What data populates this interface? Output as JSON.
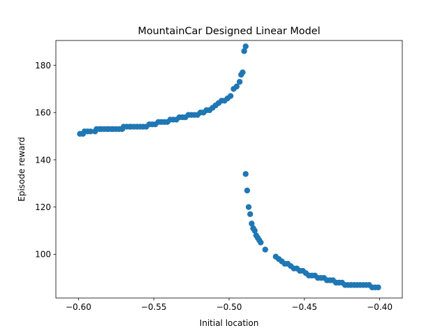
{
  "chart_data": {
    "type": "scatter",
    "title": "MountainCar Designed Linear Model",
    "xlabel": "Initial location",
    "ylabel": "Episode reward",
    "xlim": [
      -0.615,
      -0.385
    ],
    "ylim": [
      81.5,
      190.5
    ],
    "xticks": [
      -0.6,
      -0.55,
      -0.5,
      -0.45,
      -0.4
    ],
    "xtick_labels": [
      "−0.60",
      "−0.55",
      "−0.50",
      "−0.45",
      "−0.40"
    ],
    "yticks": [
      100,
      120,
      140,
      160,
      180
    ],
    "ytick_labels": [
      "100",
      "120",
      "140",
      "160",
      "180"
    ],
    "grid": false,
    "legend": "none",
    "marker_color": "#1f77b4",
    "series": [
      {
        "x": [
          -0.599,
          -0.597,
          -0.596,
          -0.594,
          -0.592,
          -0.589,
          -0.588,
          -0.586,
          -0.585,
          -0.583,
          -0.581,
          -0.58,
          -0.578,
          -0.577,
          -0.575,
          -0.573,
          -0.571,
          -0.57,
          -0.568,
          -0.566,
          -0.565,
          -0.563,
          -0.561,
          -0.559,
          -0.557,
          -0.555,
          -0.553,
          -0.551,
          -0.549,
          -0.547,
          -0.545,
          -0.543,
          -0.541,
          -0.539,
          -0.537,
          -0.535,
          -0.533,
          -0.531,
          -0.529,
          -0.527,
          -0.525,
          -0.523,
          -0.521,
          -0.519,
          -0.517,
          -0.515,
          -0.513,
          -0.511,
          -0.509,
          -0.507,
          -0.505,
          -0.503,
          -0.501,
          -0.499,
          -0.497,
          -0.495,
          -0.493,
          -0.492,
          -0.491,
          -0.49,
          -0.489,
          -0.489,
          -0.488,
          -0.487,
          -0.486,
          -0.485,
          -0.484,
          -0.483,
          -0.482,
          -0.481,
          -0.48,
          -0.479,
          -0.476,
          -0.469,
          -0.467,
          -0.465,
          -0.463,
          -0.461,
          -0.459,
          -0.457,
          -0.455,
          -0.453,
          -0.451,
          -0.449,
          -0.447,
          -0.445,
          -0.443,
          -0.441,
          -0.439,
          -0.437,
          -0.435,
          -0.433,
          -0.431,
          -0.429,
          -0.427,
          -0.425,
          -0.423,
          -0.421,
          -0.419,
          -0.417,
          -0.415,
          -0.413,
          -0.411,
          -0.409,
          -0.407,
          -0.405,
          -0.403,
          -0.401
        ],
        "y": [
          151,
          151,
          152,
          152,
          152,
          152,
          153,
          153,
          153,
          153,
          153,
          153,
          153,
          153,
          153,
          153,
          153,
          154,
          154,
          154,
          154,
          154,
          154,
          154,
          154,
          154,
          155,
          155,
          155,
          156,
          156,
          156,
          156,
          157,
          157,
          157,
          158,
          158,
          158,
          159,
          159,
          159,
          159,
          160,
          160,
          161,
          161,
          162,
          163,
          164,
          165,
          165,
          166,
          167,
          170,
          171,
          173,
          176,
          177,
          186,
          188,
          134,
          127,
          120,
          117,
          113,
          111,
          110,
          108,
          107,
          106,
          105,
          102,
          99,
          98,
          97,
          96,
          96,
          95,
          94,
          94,
          93,
          93,
          92,
          91,
          91,
          91,
          90,
          90,
          90,
          89,
          89,
          89,
          88,
          88,
          88,
          87,
          87,
          87,
          87,
          87,
          87,
          87,
          87,
          87,
          86,
          86,
          86
        ]
      }
    ]
  }
}
